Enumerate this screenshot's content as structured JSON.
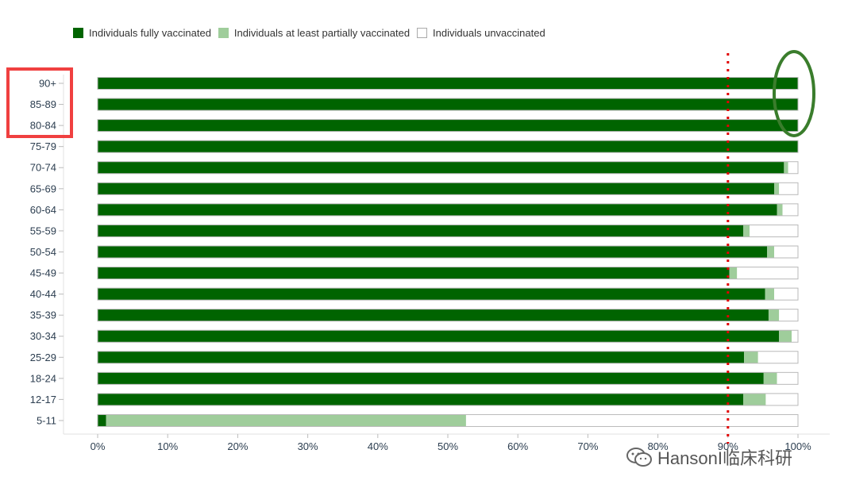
{
  "legend": [
    {
      "label": "Individuals fully vaccinated",
      "color": "#006400"
    },
    {
      "label": "Individuals at least partially vaccinated",
      "color": "#9fcd9b"
    },
    {
      "label": "Individuals unvaccinated",
      "color": "#ffffff"
    }
  ],
  "chart_data": {
    "type": "bar",
    "orientation": "horizontal",
    "stacked": true,
    "categories": [
      "90+",
      "85-89",
      "80-84",
      "75-79",
      "70-74",
      "65-69",
      "60-64",
      "55-59",
      "50-54",
      "45-49",
      "40-44",
      "35-39",
      "30-34",
      "25-29",
      "18-24",
      "12-17",
      "5-11"
    ],
    "series": [
      {
        "name": "Individuals fully vaccinated",
        "color": "#006400",
        "values": [
          100,
          100,
          100,
          100,
          98.0,
          96.6,
          97.0,
          92.2,
          95.6,
          90.2,
          95.3,
          95.8,
          97.3,
          92.3,
          95.1,
          92.2,
          1.2
        ]
      },
      {
        "name": "Individuals at least partially vaccinated",
        "color": "#9fcd9b",
        "values": [
          0,
          0,
          0,
          0,
          0.6,
          0.7,
          0.8,
          0.9,
          1.0,
          1.1,
          1.3,
          1.5,
          1.8,
          2.0,
          1.9,
          3.2,
          51.4
        ]
      },
      {
        "name": "Individuals unvaccinated",
        "color": "#ffffff",
        "values": [
          0,
          0,
          0,
          0,
          1.4,
          2.7,
          2.2,
          6.9,
          3.4,
          8.7,
          3.4,
          2.7,
          0.9,
          5.7,
          3.0,
          4.6,
          47.4
        ]
      }
    ],
    "xlim": [
      0,
      100
    ],
    "xticks": [
      "0%",
      "10%",
      "20%",
      "30%",
      "40%",
      "50%",
      "60%",
      "70%",
      "80%",
      "90%",
      "100%"
    ],
    "reference_line": {
      "value": 90,
      "style": "dotted",
      "color": "#e00000"
    },
    "annotations": [
      {
        "type": "rectangle",
        "target": [
          "90+",
          "85-89",
          "80-84"
        ],
        "color": "#f04040"
      },
      {
        "type": "ellipse",
        "target": "bar ends at 100% for 90+, 85-89, 80-84",
        "color": "#3a7d2c"
      }
    ],
    "grid": false,
    "legend_position": "top-left"
  },
  "watermark": {
    "icon": "wechat-icon",
    "text": "HansonI临床科研"
  }
}
